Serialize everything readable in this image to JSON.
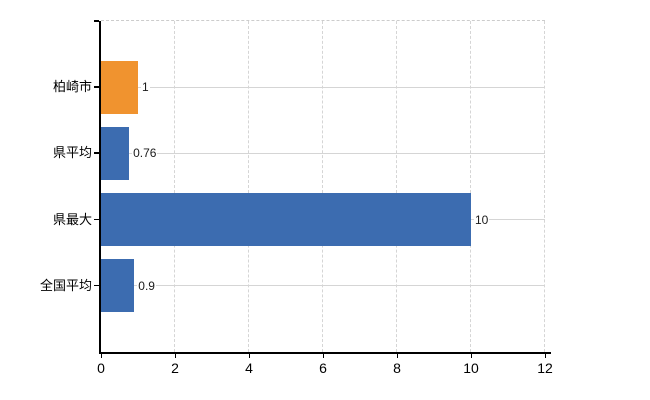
{
  "chart_data": {
    "type": "bar",
    "orientation": "horizontal",
    "title": "",
    "xlabel": "",
    "ylabel": "",
    "categories": [
      "柏崎市",
      "県平均",
      "県最大",
      "全国平均"
    ],
    "values": [
      1,
      0.76,
      10,
      0.9
    ],
    "value_labels": [
      "1",
      "0.76",
      "10",
      "0.9"
    ],
    "bar_colors": [
      "#F0932F",
      "#3C6CB0",
      "#3C6CB0",
      "#3C6CB0"
    ],
    "xlim": [
      0,
      12
    ],
    "x_ticks": [
      0,
      2,
      4,
      6,
      8,
      10,
      12
    ],
    "grid": true,
    "legend": false,
    "colors": {
      "highlight_bar": "#F0932F",
      "default_bar": "#3C6CB0",
      "gridline": "#D5D5D5",
      "plot_border_dashed": "#CCCCCC",
      "axis": "#000000",
      "text": "#000000",
      "background": "#FFFFFF"
    }
  }
}
